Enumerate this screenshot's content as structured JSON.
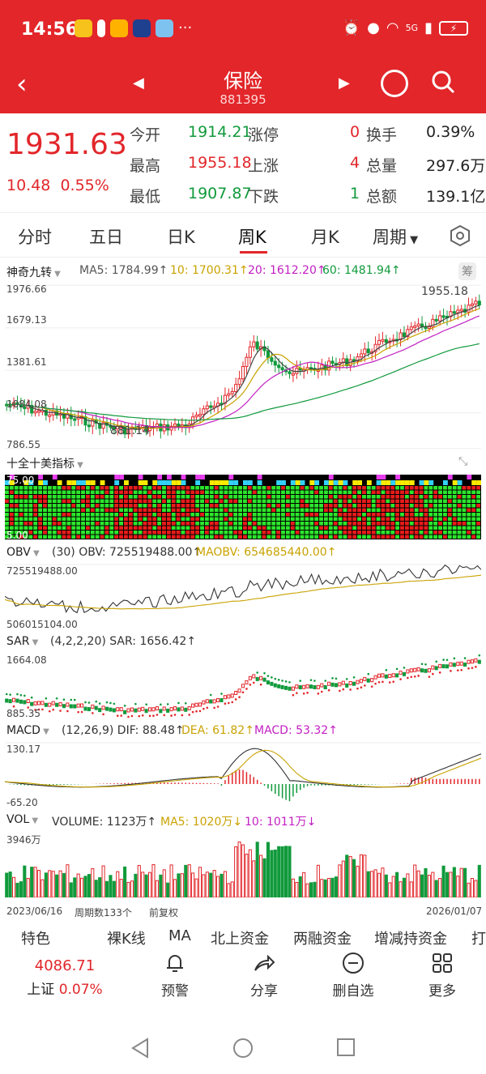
{
  "status": {
    "time": "14:56",
    "network": "5G"
  },
  "nav": {
    "title": "保险",
    "code": "881395"
  },
  "quote": {
    "price": "1931.63",
    "change": "10.48",
    "change_pct": "0.55%",
    "rows": [
      {
        "l1": "今开",
        "v1": "1914.21",
        "l2": "涨停",
        "v2": "0",
        "l3": "换手",
        "v3": "0.39%"
      },
      {
        "l1": "最高",
        "v1": "1955.18",
        "l2": "上涨",
        "v2": "4",
        "l3": "总量",
        "v3": "297.6万"
      },
      {
        "l1": "最低",
        "v1": "1907.87",
        "l2": "下跌",
        "v2": "1",
        "l3": "总额",
        "v3": "139.1亿"
      }
    ]
  },
  "tabs": [
    "分时",
    "五日",
    "日K",
    "周K",
    "月K",
    "周期"
  ],
  "active_tab": "周K",
  "main_chart": {
    "indicator": "神奇九转",
    "ma5": "MA5: 1784.99↑",
    "ma10": "10: 1700.31↑",
    "ma20": "20: 1612.20↑",
    "ma60": "60: 1481.94↑",
    "chip_label": "筹",
    "y_ticks": [
      "1976.66",
      "1679.13",
      "1381.61",
      "1084.08",
      "786.55"
    ],
    "high_label": "1955.18",
    "low_label": "881.14"
  },
  "panel2": {
    "title": "十全十美指标",
    "top": "75.00",
    "bottom": "5.00"
  },
  "obv": {
    "name": "OBV",
    "params": "(30) OBV: 725519488.00↑",
    "maobv": "MAOBV: 654685440.00↑",
    "top": "725519488.00",
    "bottom": "506015104.00"
  },
  "sar": {
    "name": "SAR",
    "params": "(4,2,2,20) SAR: 1656.42↑",
    "top": "1664.08",
    "bottom": "885.35"
  },
  "macd": {
    "name": "MACD",
    "params": "(12,26,9) DIF: 88.48↑",
    "dea": "DEA: 61.82↑",
    "macd": "MACD: 53.32↑",
    "top": "130.17",
    "bottom": "-65.20"
  },
  "vol": {
    "name": "VOL",
    "volume": "VOLUME: 1123万↑",
    "ma5": "MA5: 1020万↓",
    "ma10": "10: 1011万↓",
    "top": "3946万"
  },
  "axis_bottom": {
    "start": "2023/06/16",
    "count": "周期数133个",
    "adjust": "前复权",
    "end": "2026/01/07"
  },
  "bottom_tools": [
    "特色",
    "裸K线",
    "MA",
    "北上资金",
    "两融资金",
    "增减持资金",
    "打"
  ],
  "footer": {
    "index_value": "4086.71",
    "index_name": "上证",
    "index_pct": "0.07%",
    "items": [
      "预警",
      "分享",
      "删自选",
      "更多"
    ]
  },
  "colors": {
    "up": "#e2262a",
    "down": "#119a3c",
    "brand": "#e2262a"
  }
}
